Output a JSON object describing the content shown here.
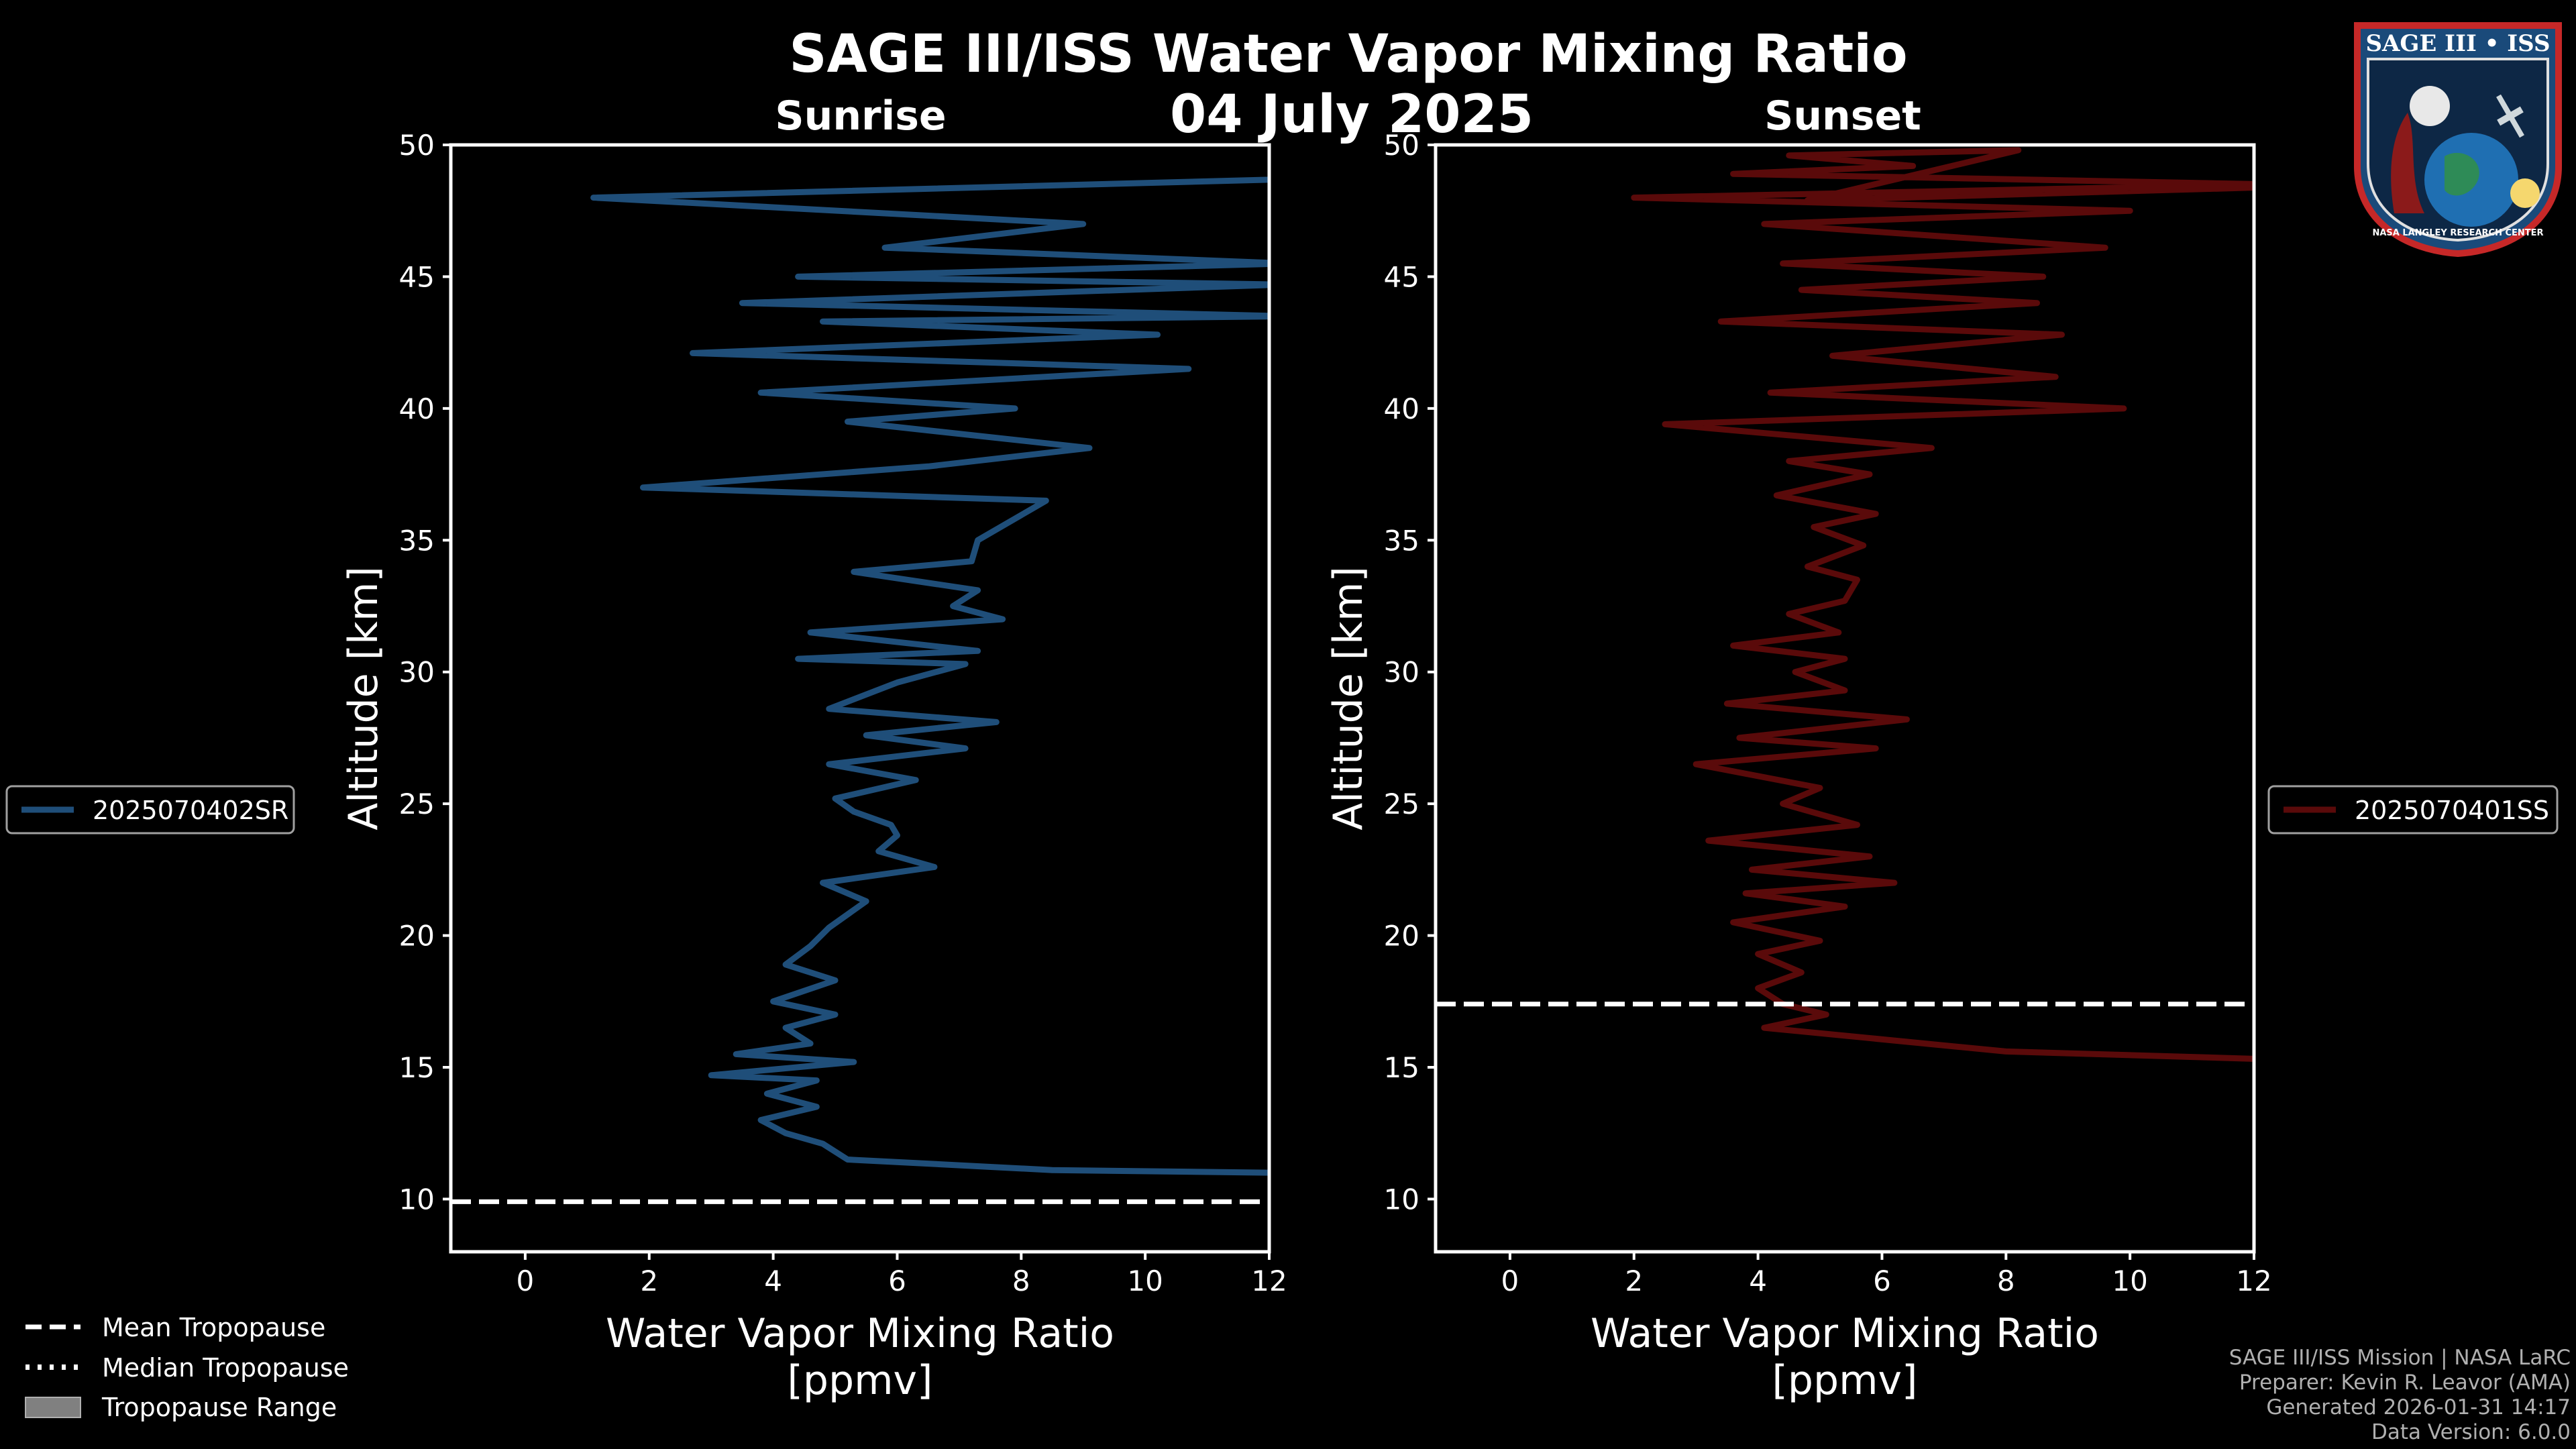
{
  "main_title": "SAGE III/ISS Water Vapor Mixing Ratio",
  "date": "04 July 2025",
  "colors": {
    "sunrise": "#1f4e79",
    "sunset": "#5a0a0a",
    "tropopause": "#ffffff",
    "range": "#808080"
  },
  "panels": {
    "sunrise": {
      "title": "Sunrise",
      "legend_label": "2025070402SR"
    },
    "sunset": {
      "title": "Sunset",
      "legend_label": "2025070401SS"
    }
  },
  "legend": {
    "mean": "Mean Tropopause",
    "median": "Median Tropopause",
    "range": "Tropopause Range"
  },
  "footer": {
    "line1": "SAGE III/ISS Mission | NASA LaRC",
    "line2": "Preparer: Kevin R. Leavor (AMA)",
    "line3": "Generated 2026-01-31 14:17",
    "line4": "Data Version: 6.0.0"
  },
  "logo": {
    "name": "SAGE III • ISS",
    "caption": "NASA LANGLEY RESEARCH CENTER"
  },
  "chart_data": [
    {
      "type": "line",
      "title": "Sunrise",
      "xlabel": "Water Vapor Mixing Ratio\n[ppmv]",
      "ylabel": "Altitude [km]",
      "xlim": [
        -1.2,
        12
      ],
      "ylim": [
        8,
        50
      ],
      "xticks": [
        0,
        2,
        4,
        6,
        8,
        10,
        12
      ],
      "yticks": [
        10,
        15,
        20,
        25,
        30,
        35,
        40,
        45,
        50
      ],
      "series": [
        {
          "name": "2025070402SR",
          "x": [
            12,
            8.5,
            5.2,
            4.8,
            4.2,
            3.8,
            4.7,
            3.9,
            4.7,
            3.0,
            5.3,
            3.4,
            4.6,
            4.2,
            5.0,
            4.0,
            5.0,
            4.2,
            4.6,
            4.9,
            5.5,
            4.8,
            6.6,
            5.7,
            6.0,
            5.9,
            5.3,
            5.0,
            6.3,
            4.9,
            7.1,
            5.5,
            7.6,
            4.9,
            6.0,
            7.1,
            4.4,
            7.3,
            4.6,
            7.7,
            6.9,
            7.3,
            5.3,
            7.2,
            7.3,
            8.4,
            1.9,
            6.5,
            9.1,
            5.2,
            7.9,
            3.8,
            10.7,
            2.7,
            10.2,
            4.8,
            12.3,
            3.5,
            12.2,
            4.4,
            12.3,
            5.8,
            9.0,
            1.1,
            12.3,
            12.1
          ],
          "y": [
            11,
            11.1,
            11.5,
            12.1,
            12.5,
            13.0,
            13.5,
            14.0,
            14.5,
            14.7,
            15.2,
            15.5,
            15.9,
            16.5,
            17.0,
            17.5,
            18.3,
            18.9,
            19.6,
            20.3,
            21.3,
            22.0,
            22.6,
            23.2,
            23.8,
            24.2,
            24.7,
            25.2,
            25.9,
            26.5,
            27.1,
            27.6,
            28.1,
            28.6,
            29.6,
            30.3,
            30.5,
            30.8,
            31.5,
            32.0,
            32.5,
            33.1,
            33.8,
            34.2,
            35.0,
            36.5,
            37.0,
            37.8,
            38.5,
            39.5,
            40.0,
            40.6,
            41.5,
            42.1,
            42.8,
            43.3,
            43.5,
            44.0,
            44.7,
            45.0,
            45.5,
            46.1,
            47.0,
            48.0,
            48.7,
            49.6
          ]
        }
      ],
      "mean_tropopause_km": 9.9
    },
    {
      "type": "line",
      "title": "Sunset",
      "xlabel": "Water Vapor Mixing Ratio\n[ppmv]",
      "ylabel": "Altitude [km]",
      "xlim": [
        -1.2,
        12
      ],
      "ylim": [
        8,
        50
      ],
      "xticks": [
        0,
        2,
        4,
        6,
        8,
        10,
        12
      ],
      "yticks": [
        10,
        15,
        20,
        25,
        30,
        35,
        40,
        45,
        50
      ],
      "series": [
        {
          "name": "2025070401SS",
          "x": [
            12.3,
            8.0,
            4.1,
            5.1,
            4.4,
            4.0,
            4.7,
            4.0,
            5.0,
            3.6,
            5.4,
            3.8,
            6.2,
            3.9,
            5.8,
            3.2,
            5.6,
            4.4,
            5.0,
            3.0,
            5.9,
            3.7,
            6.4,
            3.5,
            5.4,
            4.6,
            5.4,
            3.6,
            5.3,
            4.5,
            5.4,
            5.6,
            4.8,
            5.7,
            4.9,
            5.9,
            4.3,
            5.8,
            4.5,
            6.8,
            2.5,
            9.9,
            4.2,
            8.8,
            5.2,
            8.9,
            3.4,
            8.5,
            4.7,
            8.6,
            4.4,
            9.6,
            4.1,
            10.0,
            2.0,
            12.3,
            3.6,
            6.5,
            4.5,
            8.2,
            4.8,
            12.3,
            12.3,
            12.3
          ],
          "y": [
            15.3,
            15.6,
            16.5,
            17.0,
            17.4,
            18.0,
            18.6,
            19.3,
            19.8,
            20.5,
            21.1,
            21.6,
            22.0,
            22.5,
            23.0,
            23.6,
            24.2,
            25.0,
            25.6,
            26.5,
            27.1,
            27.5,
            28.2,
            28.8,
            29.3,
            30.0,
            30.5,
            31.0,
            31.5,
            32.2,
            32.7,
            33.5,
            34.0,
            34.8,
            35.5,
            36.0,
            36.7,
            37.5,
            38.0,
            38.5,
            39.4,
            40.0,
            40.6,
            41.2,
            42.0,
            42.8,
            43.3,
            44.0,
            44.5,
            45.0,
            45.5,
            46.1,
            47.0,
            47.5,
            48.0,
            48.5,
            48.9,
            49.2,
            49.6,
            49.8,
            47.9,
            48.4,
            49.0,
            49.5
          ]
        }
      ],
      "mean_tropopause_km": 17.4
    }
  ]
}
